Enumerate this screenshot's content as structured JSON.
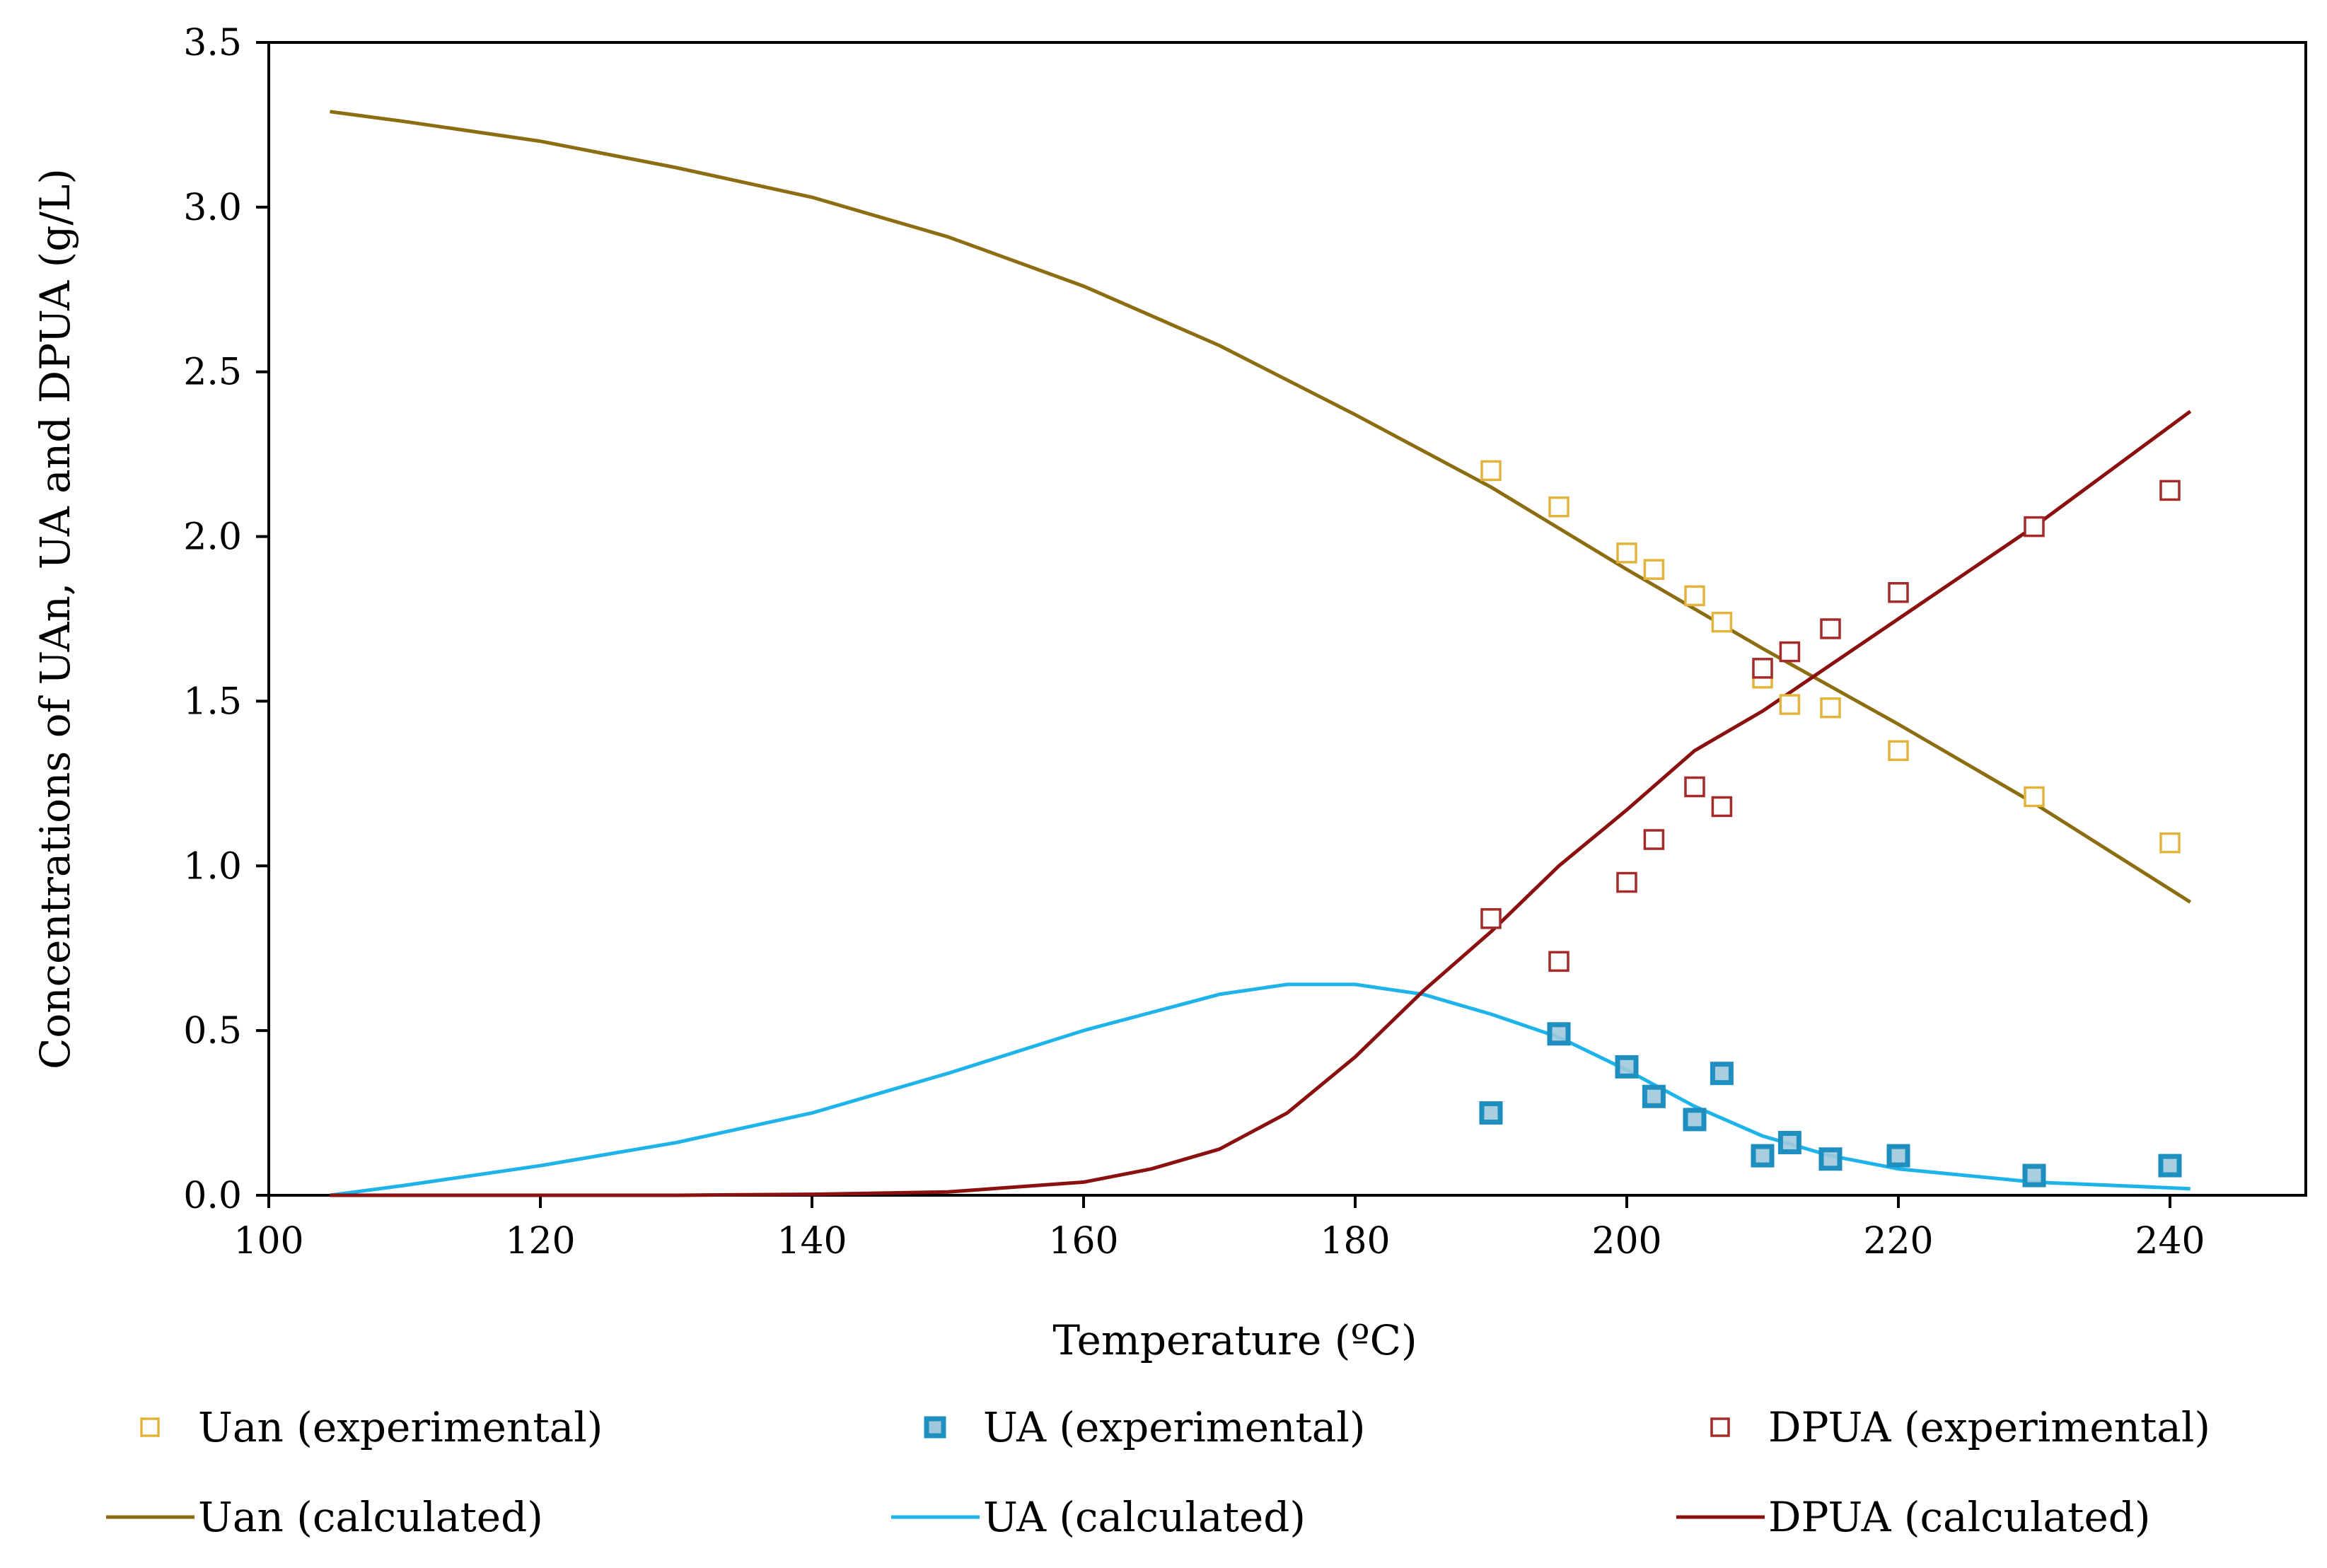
{
  "chart_data": {
    "type": "scatter",
    "title": "",
    "xlabel": "Temperature (ºC)",
    "ylabel": "Concentrations of UAn, UA and DPUA (g/L)",
    "xlim": [
      100,
      250
    ],
    "ylim": [
      0,
      3.5
    ],
    "x_ticks": [
      100,
      120,
      140,
      160,
      180,
      200,
      220,
      240
    ],
    "x_tick_labels": [
      "100",
      "120",
      "140",
      "160",
      "180",
      "200",
      "220",
      "240"
    ],
    "y_ticks": [
      0,
      0.5,
      1,
      1.5,
      2,
      2.5,
      3,
      3.5
    ],
    "y_tick_labels": [
      "0.0",
      "0.5",
      "1.0",
      "1.5",
      "2.0",
      "2.5",
      "3.0",
      "3.5"
    ],
    "grid": false,
    "legend_position": "bottom",
    "series": [
      {
        "name": "Uan (experimental)",
        "kind": "markers",
        "color": "#E2B43C",
        "x": [
          190,
          195,
          200,
          202,
          205,
          207,
          210,
          212,
          215,
          220,
          230,
          240
        ],
        "y": [
          2.2,
          2.09,
          1.95,
          1.9,
          1.82,
          1.74,
          1.57,
          1.49,
          1.48,
          1.35,
          1.21,
          1.07
        ]
      },
      {
        "name": "UA (experimental)",
        "kind": "markers",
        "color": "#1F8FC0",
        "x": [
          190,
          195,
          200,
          202,
          205,
          207,
          210,
          212,
          215,
          220,
          230,
          240
        ],
        "y": [
          0.25,
          0.49,
          0.39,
          0.3,
          0.23,
          0.37,
          0.12,
          0.16,
          0.11,
          0.12,
          0.06,
          0.09
        ]
      },
      {
        "name": "DPUA (experimental)",
        "kind": "markers",
        "color": "#A52A2A",
        "x": [
          190,
          195,
          200,
          202,
          205,
          207,
          210,
          212,
          215,
          220,
          230,
          240
        ],
        "y": [
          0.84,
          0.71,
          0.95,
          1.08,
          1.24,
          1.18,
          1.6,
          1.65,
          1.72,
          1.83,
          2.03,
          2.14
        ]
      },
      {
        "name": "Uan (calculated)",
        "kind": "line",
        "color": "#8C6D12",
        "x": [
          104.5,
          110,
          120,
          130,
          140,
          150,
          160,
          170,
          180,
          190,
          200,
          210,
          220,
          230,
          241.5
        ],
        "y": [
          3.29,
          3.26,
          3.2,
          3.12,
          3.03,
          2.91,
          2.76,
          2.58,
          2.37,
          2.15,
          1.9,
          1.66,
          1.43,
          1.19,
          0.89
        ]
      },
      {
        "name": "UA (calculated)",
        "kind": "line",
        "color": "#1EB4EA",
        "x": [
          104.5,
          110,
          120,
          130,
          140,
          150,
          160,
          170,
          175,
          180,
          185,
          190,
          195,
          200,
          205,
          210,
          215,
          220,
          230,
          241.5
        ],
        "y": [
          0.0,
          0.03,
          0.09,
          0.16,
          0.25,
          0.37,
          0.5,
          0.61,
          0.64,
          0.64,
          0.61,
          0.55,
          0.48,
          0.38,
          0.27,
          0.18,
          0.12,
          0.08,
          0.04,
          0.02
        ]
      },
      {
        "name": "DPUA (calculated)",
        "kind": "line",
        "color": "#8B1010",
        "x": [
          104.5,
          130,
          140,
          150,
          160,
          165,
          170,
          175,
          180,
          185,
          190,
          195,
          200,
          205,
          210,
          215,
          220,
          230,
          241.5
        ],
        "y": [
          0.0,
          0.0,
          0.003,
          0.01,
          0.04,
          0.08,
          0.14,
          0.25,
          0.42,
          0.62,
          0.8,
          1.0,
          1.17,
          1.35,
          1.47,
          1.61,
          1.75,
          2.03,
          2.38
        ]
      }
    ]
  }
}
